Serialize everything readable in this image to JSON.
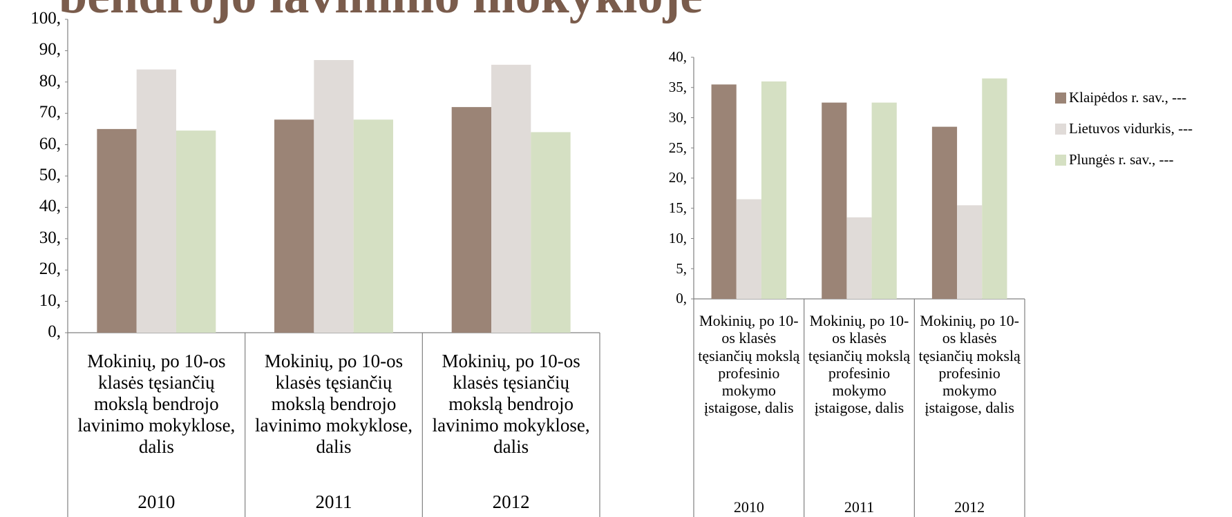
{
  "chart_data": [
    {
      "type": "bar",
      "title": "bendrojo lavinimo mokykloje",
      "categories": [
        "Mokinių, po 10-os klasės tęsiančių mokslą bendrojo lavinimo mokyklose, dalis",
        "Mokinių, po 10-os klasės tęsiančių mokslą bendrojo lavinimo mokyklose, dalis",
        "Mokinių, po 10-os klasės tęsiančių mokslą bendrojo lavinimo mokyklose, dalis"
      ],
      "years": [
        "2010",
        "2011",
        "2012"
      ],
      "series": [
        {
          "color": "#9b8476",
          "values": [
            65,
            68,
            72
          ]
        },
        {
          "color": "#e0dbd8",
          "values": [
            84,
            87,
            85.5
          ]
        },
        {
          "color": "#d5e0c3",
          "values": [
            64.5,
            68,
            64
          ]
        }
      ],
      "ylim": [
        0,
        100
      ],
      "yticks": [
        {
          "value": 0,
          "label": "0,"
        },
        {
          "value": 10,
          "label": "10,"
        },
        {
          "value": 20,
          "label": "20,"
        },
        {
          "value": 30,
          "label": "30,"
        },
        {
          "value": 40,
          "label": "40,"
        },
        {
          "value": 50,
          "label": "50,"
        },
        {
          "value": 60,
          "label": "60,"
        },
        {
          "value": 70,
          "label": "70,"
        },
        {
          "value": 80,
          "label": "80,"
        },
        {
          "value": 90,
          "label": "90,"
        },
        {
          "value": 100,
          "label": "100,"
        }
      ]
    },
    {
      "type": "bar",
      "categories": [
        "Mokinių, po 10-os klasės tęsiančių mokslą profesinio mokymo įstaigose, dalis",
        "Mokinių, po 10-os klasės tęsiančių mokslą profesinio mokymo įstaigose, dalis",
        "Mokinių, po 10-os klasės tęsiančių mokslą profesinio mokymo įstaigose, dalis"
      ],
      "years": [
        "2010",
        "2011",
        "2012"
      ],
      "series": [
        {
          "name": "Klaipėdos r. sav., ---",
          "color": "#9b8476",
          "values": [
            35.5,
            32.5,
            28.5
          ]
        },
        {
          "name": "Lietuvos vidurkis, ---",
          "color": "#e0dbd8",
          "values": [
            16.5,
            13.5,
            15.5
          ]
        },
        {
          "name": "Plungės r. sav., ---",
          "color": "#d5e0c3",
          "values": [
            36,
            32.5,
            36.5
          ]
        }
      ],
      "ylim": [
        0,
        40
      ],
      "yticks": [
        {
          "value": 0,
          "label": "0,"
        },
        {
          "value": 5,
          "label": "5,"
        },
        {
          "value": 10,
          "label": "10,"
        },
        {
          "value": 15,
          "label": "15,"
        },
        {
          "value": 20,
          "label": "20,"
        },
        {
          "value": 25,
          "label": "25,"
        },
        {
          "value": 30,
          "label": "30,"
        },
        {
          "value": 35,
          "label": "35,"
        },
        {
          "value": 40,
          "label": "40,"
        }
      ],
      "legend": "right"
    }
  ]
}
